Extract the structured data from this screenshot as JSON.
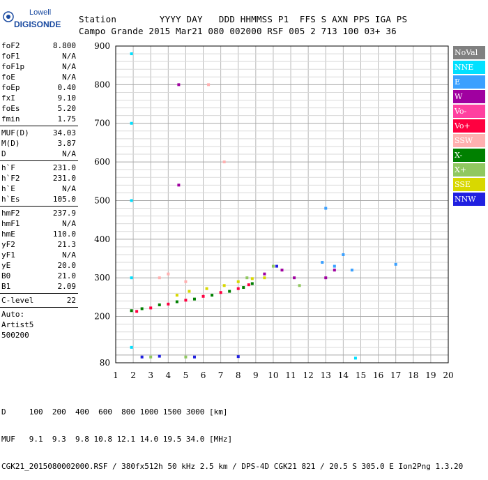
{
  "logo": {
    "line1": "Lowell",
    "line2": "DIGISONDE"
  },
  "header": {
    "labels_line": "Station        YYYY DAY   DDD HHMMSS P1  FFS S AXN PPS IGA PS",
    "values_line": "Campo Grande 2015 Mar21 080 002000 RSF 005 2 713 100 03+ 36"
  },
  "params": [
    {
      "name": "foF2",
      "value": "8.800"
    },
    {
      "name": "foF1",
      "value": "N/A"
    },
    {
      "name": "foF1p",
      "value": "N/A"
    },
    {
      "name": "foE",
      "value": "N/A"
    },
    {
      "name": "foEp",
      "value": "0.40"
    },
    {
      "name": "fxI",
      "value": "9.10"
    },
    {
      "name": "foEs",
      "value": "5.20"
    },
    {
      "name": "fmin",
      "value": "1.75"
    },
    {
      "sep": true
    },
    {
      "name": "MUF(D)",
      "value": "34.03"
    },
    {
      "name": "M(D)",
      "value": "3.87"
    },
    {
      "name": "D",
      "value": "N/A"
    },
    {
      "sep": true
    },
    {
      "name": "h`F",
      "value": "231.0"
    },
    {
      "name": "h`F2",
      "value": "231.0"
    },
    {
      "name": "h`E",
      "value": "N/A"
    },
    {
      "name": "h`Es",
      "value": "105.0"
    },
    {
      "sep": true
    },
    {
      "name": "hmF2",
      "value": "237.9"
    },
    {
      "name": "hmF1",
      "value": "N/A"
    },
    {
      "name": "hmE",
      "value": "110.0"
    },
    {
      "name": "yF2",
      "value": "21.3"
    },
    {
      "name": "yF1",
      "value": "N/A"
    },
    {
      "name": "yE",
      "value": "20.0"
    },
    {
      "name": "B0",
      "value": "21.0"
    },
    {
      "name": "B1",
      "value": "2.09"
    },
    {
      "sep": true
    },
    {
      "name": "C-level",
      "value": "22"
    },
    {
      "sep": true
    },
    {
      "name": "Auto:",
      "value": ""
    },
    {
      "name": "Artist5",
      "value": ""
    },
    {
      "name": "500200",
      "value": ""
    }
  ],
  "legend": [
    {
      "label": "NoVal",
      "color": "#808080"
    },
    {
      "label": "NNE",
      "color": "#00e0ff"
    },
    {
      "label": "E",
      "color": "#3aa0ff"
    },
    {
      "label": "W",
      "color": "#a000a0"
    },
    {
      "label": "Vo-",
      "color": "#ff40a0"
    },
    {
      "label": "Vo+",
      "color": "#ff0040"
    },
    {
      "label": "SSW",
      "color": "#ffb0b0"
    },
    {
      "label": "X-",
      "color": "#008000"
    },
    {
      "label": "X+",
      "color": "#90c860"
    },
    {
      "label": "SSE",
      "color": "#d8d800"
    },
    {
      "label": "NNW",
      "color": "#2020e0"
    }
  ],
  "footer": {
    "d_line": "D     100  200  400  600  800 1000 1500 3000 [km]",
    "muf_line": "MUF   9.1  9.3  9.8 10.8 12.1 14.0 19.5 34.0 [MHz]",
    "file_line": "CGK21_2015080002000.RSF / 380fx512h 50 kHz 2.5 km / DPS-4D CGK21 821 / 20.5 S 305.0 E Ion2Png 1.3.20"
  },
  "chart_data": {
    "type": "scatter",
    "xlim": [
      1,
      20
    ],
    "ylim": [
      80,
      900
    ],
    "x_ticks": [
      1,
      2,
      3,
      4,
      5,
      6,
      7,
      8,
      9,
      10,
      11,
      12,
      13,
      14,
      15,
      16,
      17,
      18,
      19,
      20
    ],
    "y_ticks": [
      80,
      200,
      300,
      400,
      500,
      600,
      700,
      800,
      900
    ],
    "grid": true,
    "legend_position": "right",
    "series": [
      {
        "name": "X-",
        "color": "#008000",
        "points": [
          [
            1.9,
            215
          ],
          [
            2.5,
            220
          ],
          [
            3.5,
            230
          ],
          [
            4.5,
            238
          ],
          [
            5.5,
            245
          ],
          [
            6.5,
            255
          ],
          [
            7.5,
            265
          ],
          [
            8.3,
            275
          ],
          [
            8.8,
            285
          ]
        ]
      },
      {
        "name": "Vo+",
        "color": "#ff0040",
        "points": [
          [
            2.2,
            213
          ],
          [
            3,
            222
          ],
          [
            4,
            232
          ],
          [
            5,
            242
          ],
          [
            6,
            252
          ],
          [
            7,
            262
          ],
          [
            8,
            272
          ],
          [
            8.6,
            282
          ]
        ]
      },
      {
        "name": "SSE",
        "color": "#d8d800",
        "points": [
          [
            4.5,
            255
          ],
          [
            5.2,
            265
          ],
          [
            6.2,
            272
          ],
          [
            7.2,
            280
          ],
          [
            8,
            290
          ],
          [
            8.8,
            298
          ],
          [
            9.5,
            300
          ]
        ]
      },
      {
        "name": "W",
        "color": "#a000a0",
        "points": [
          [
            4.6,
            540
          ],
          [
            4.6,
            800
          ],
          [
            9.5,
            310
          ],
          [
            10.5,
            320
          ],
          [
            11.2,
            300
          ],
          [
            13,
            300
          ],
          [
            13.5,
            320
          ]
        ]
      },
      {
        "name": "E",
        "color": "#3aa0ff",
        "points": [
          [
            12.8,
            340
          ],
          [
            13.5,
            330
          ],
          [
            14,
            360
          ],
          [
            14.5,
            320
          ],
          [
            13,
            480
          ],
          [
            17,
            335
          ]
        ]
      },
      {
        "name": "NNE",
        "color": "#00e0ff",
        "points": [
          [
            1.9,
            120
          ],
          [
            1.9,
            300
          ],
          [
            1.9,
            500
          ],
          [
            1.9,
            700
          ],
          [
            1.9,
            880
          ],
          [
            14.7,
            92
          ]
        ]
      },
      {
        "name": "SSW",
        "color": "#ffb0b0",
        "points": [
          [
            3.5,
            300
          ],
          [
            4,
            310
          ],
          [
            5,
            290
          ],
          [
            6.3,
            800
          ],
          [
            7.2,
            600
          ]
        ]
      },
      {
        "name": "X+",
        "color": "#90c860",
        "points": [
          [
            3,
            95
          ],
          [
            5,
            95
          ],
          [
            8.5,
            300
          ],
          [
            10,
            330
          ],
          [
            11.5,
            280
          ]
        ]
      },
      {
        "name": "NNW",
        "color": "#2020e0",
        "points": [
          [
            2.5,
            95
          ],
          [
            3.5,
            97
          ],
          [
            5.5,
            95
          ],
          [
            8,
            96
          ],
          [
            10.2,
            330
          ]
        ]
      }
    ]
  }
}
